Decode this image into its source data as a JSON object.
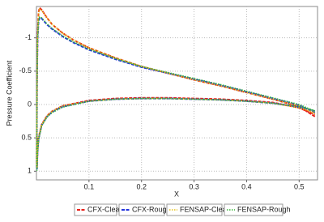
{
  "chart_data": {
    "type": "line",
    "x_label": "X",
    "y_label": "Pressure Coefficient",
    "xlim": [
      0,
      0.535
    ],
    "ylim": [
      1.13,
      -1.47
    ],
    "xticks": [
      0.1,
      0.2,
      0.3,
      0.4,
      0.5
    ],
    "yticks": [
      -1,
      -0.5,
      0,
      0.5,
      1
    ],
    "grid": true,
    "legend": "bottom",
    "x": [
      0.53,
      0.5,
      0.45,
      0.4,
      0.35,
      0.3,
      0.25,
      0.2,
      0.15,
      0.1,
      0.07,
      0.05,
      0.03,
      0.02,
      0.01,
      0.006,
      0.004,
      0.002,
      0.001,
      0.0005,
      0.001,
      0.002,
      0.004,
      0.01,
      0.02,
      0.03,
      0.05,
      0.1,
      0.15,
      0.2,
      0.25,
      0.3,
      0.35,
      0.4,
      0.45,
      0.5,
      0.53
    ],
    "series": [
      {
        "name": "CFX-Clean",
        "color": "#e8211b",
        "dash": "4 1.5",
        "width": 2,
        "values": [
          0.18,
          0.03,
          -0.08,
          -0.18,
          -0.28,
          -0.37,
          -0.47,
          -0.57,
          -0.7,
          -0.85,
          -0.97,
          -1.07,
          -1.2,
          -1.3,
          -1.42,
          -1.45,
          -1.38,
          -1.0,
          -0.3,
          0.9,
          0.95,
          0.7,
          0.5,
          0.3,
          0.17,
          0.1,
          0.02,
          -0.06,
          -0.09,
          -0.1,
          -0.1,
          -0.09,
          -0.08,
          -0.06,
          -0.03,
          0.05,
          0.15
        ]
      },
      {
        "name": "CFX-Rough",
        "color": "#2233dd",
        "dash": "4 1.5",
        "width": 2,
        "values": [
          0.12,
          0.01,
          -0.09,
          -0.19,
          -0.29,
          -0.38,
          -0.47,
          -0.56,
          -0.68,
          -0.82,
          -0.93,
          -1.02,
          -1.13,
          -1.2,
          -1.29,
          -1.3,
          -1.25,
          -0.95,
          -0.3,
          0.95,
          0.97,
          0.72,
          0.52,
          0.31,
          0.18,
          0.11,
          0.03,
          -0.05,
          -0.08,
          -0.09,
          -0.09,
          -0.08,
          -0.07,
          -0.05,
          -0.02,
          0.04,
          0.1
        ]
      },
      {
        "name": "FENSAP-Clean",
        "color": "#e8c41b",
        "dash": "1.5 1.5",
        "width": 1.6,
        "values": [
          0.14,
          0.02,
          -0.08,
          -0.18,
          -0.28,
          -0.37,
          -0.47,
          -0.57,
          -0.7,
          -0.85,
          -0.97,
          -1.07,
          -1.2,
          -1.3,
          -1.41,
          -1.43,
          -1.36,
          -0.98,
          -0.3,
          0.9,
          0.95,
          0.7,
          0.5,
          0.3,
          0.17,
          0.1,
          0.02,
          -0.05,
          -0.08,
          -0.09,
          -0.09,
          -0.08,
          -0.07,
          -0.05,
          -0.02,
          0.05,
          0.12
        ]
      },
      {
        "name": "FENSAP-Rough",
        "color": "#38b838",
        "dash": "1.5 1.5",
        "width": 1.6,
        "values": [
          0.1,
          0.0,
          -0.1,
          -0.2,
          -0.3,
          -0.39,
          -0.48,
          -0.57,
          -0.69,
          -0.83,
          -0.94,
          -1.03,
          -1.14,
          -1.21,
          -1.3,
          -1.31,
          -1.26,
          -0.96,
          -0.3,
          0.98,
          0.99,
          0.74,
          0.53,
          0.32,
          0.19,
          0.12,
          0.04,
          -0.05,
          -0.08,
          -0.09,
          -0.09,
          -0.08,
          -0.07,
          -0.05,
          -0.02,
          0.03,
          0.09
        ]
      }
    ]
  }
}
